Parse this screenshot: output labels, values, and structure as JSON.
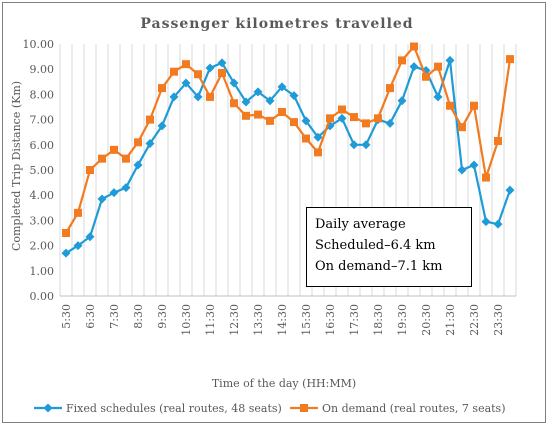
{
  "chart_data": {
    "type": "line",
    "title": "Passenger kilometres travelled",
    "xlabel": "Time of the day (HH:MM)",
    "ylabel": "Completed Trip Distance (Km)",
    "ylim": [
      0,
      10
    ],
    "yticks": [
      "0.00",
      "1.00",
      "2.00",
      "3.00",
      "4.00",
      "5.00",
      "6.00",
      "7.00",
      "8.00",
      "9.00",
      "10.00"
    ],
    "grid": "vertical",
    "legend_position": "bottom",
    "x": [
      "5:30",
      "6:00",
      "6:30",
      "7:00",
      "7:30",
      "8:00",
      "8:30",
      "9:00",
      "9:30",
      "10:00",
      "10:30",
      "11:00",
      "11:30",
      "12:00",
      "12:30",
      "13:00",
      "13:30",
      "14:00",
      "14:30",
      "15:00",
      "15:30",
      "16:00",
      "16:30",
      "17:00",
      "17:30",
      "18:00",
      "18:30",
      "19:00",
      "19:30",
      "20:00",
      "20:30",
      "21:00",
      "21:30",
      "22:00",
      "22:30",
      "23:00",
      "23:30",
      "24:00"
    ],
    "x_tick_labels": [
      "5:30",
      "6:30",
      "7:30",
      "8:30",
      "9:30",
      "10:30",
      "11:30",
      "12:30",
      "13:30",
      "14:30",
      "15:30",
      "16:30",
      "17:30",
      "18:30",
      "19:30",
      "20:30",
      "21:30",
      "22:30",
      "23:30"
    ],
    "series": [
      {
        "name": "Fixed schedules (real routes, 48 seats)",
        "color": "#1f9bd7",
        "marker": "diamond",
        "values": [
          1.7,
          2.0,
          2.35,
          3.85,
          4.1,
          4.3,
          5.2,
          6.05,
          6.75,
          7.9,
          8.45,
          7.9,
          9.05,
          9.25,
          8.45,
          7.7,
          8.1,
          7.75,
          8.3,
          7.95,
          6.95,
          6.3,
          6.75,
          7.05,
          6.0,
          6.0,
          7.0,
          6.85,
          7.75,
          9.1,
          8.95,
          7.9,
          9.35,
          5.0,
          5.2,
          2.95,
          2.85,
          4.2
        ]
      },
      {
        "name": "On demand (real routes, 7 seats)",
        "color": "#f27a20",
        "marker": "square",
        "values": [
          2.5,
          3.3,
          5.0,
          5.45,
          5.8,
          5.45,
          6.1,
          7.0,
          8.25,
          8.9,
          9.2,
          8.8,
          7.9,
          8.85,
          7.65,
          7.15,
          7.2,
          6.95,
          7.3,
          6.9,
          6.25,
          5.7,
          7.05,
          7.4,
          7.1,
          6.85,
          7.05,
          8.25,
          9.35,
          9.9,
          8.7,
          9.1,
          7.55,
          6.7,
          7.55,
          4.7,
          6.15,
          9.4
        ]
      }
    ],
    "annotation": {
      "lines": [
        "Daily average",
        "Scheduled–6.4 km",
        "On demand–7.1 km"
      ]
    }
  }
}
